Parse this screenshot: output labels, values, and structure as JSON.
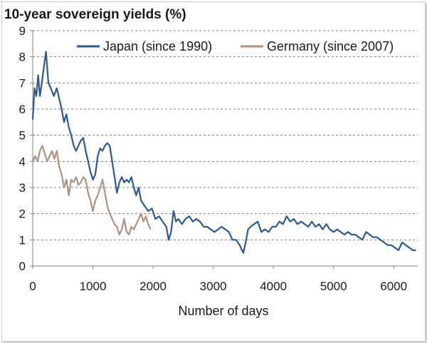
{
  "chart_data": {
    "type": "line",
    "title": "10-year sovereign yields (%)",
    "xlabel": "Number of days",
    "ylabel": "",
    "xlim": [
      0,
      6400
    ],
    "ylim": [
      0,
      9
    ],
    "xticks": [
      0,
      1000,
      2000,
      3000,
      4000,
      5000,
      6000
    ],
    "yticks": [
      0,
      1,
      2,
      3,
      4,
      5,
      6,
      7,
      8,
      9
    ],
    "grid": "horizontal dashed",
    "legend": "top-right",
    "series": [
      {
        "name": "Japan (since 1990)",
        "color": "#2e5a8f",
        "x": [
          0,
          30,
          60,
          90,
          120,
          150,
          190,
          220,
          260,
          300,
          350,
          400,
          440,
          480,
          520,
          560,
          600,
          640,
          680,
          720,
          760,
          800,
          840,
          880,
          920,
          960,
          1000,
          1040,
          1080,
          1120,
          1160,
          1200,
          1240,
          1280,
          1320,
          1360,
          1400,
          1440,
          1480,
          1520,
          1560,
          1600,
          1640,
          1680,
          1720,
          1760,
          1800,
          1860,
          1920,
          1980,
          2040,
          2100,
          2160,
          2220,
          2260,
          2300,
          2340,
          2380,
          2420,
          2480,
          2540,
          2600,
          2660,
          2720,
          2780,
          2840,
          2900,
          2960,
          3020,
          3080,
          3140,
          3200,
          3260,
          3320,
          3380,
          3440,
          3500,
          3540,
          3580,
          3620,
          3680,
          3740,
          3800,
          3860,
          3920,
          3980,
          4040,
          4100,
          4160,
          4220,
          4280,
          4340,
          4400,
          4460,
          4520,
          4580,
          4640,
          4700,
          4760,
          4820,
          4880,
          4940,
          5000,
          5060,
          5120,
          5180,
          5240,
          5300,
          5360,
          5420,
          5480,
          5540,
          5600,
          5660,
          5720,
          5780,
          5840,
          5900,
          5960,
          6020,
          6080,
          6140,
          6200,
          6260,
          6320,
          6370
        ],
        "values": [
          5.6,
          6.8,
          6.5,
          7.3,
          6.5,
          7.0,
          7.7,
          8.2,
          7.0,
          6.8,
          6.5,
          6.8,
          6.4,
          6.0,
          5.5,
          5.8,
          5.3,
          5.0,
          4.6,
          4.4,
          4.6,
          4.8,
          4.9,
          4.4,
          4.0,
          3.6,
          3.3,
          3.5,
          4.2,
          4.5,
          4.4,
          4.6,
          4.7,
          4.6,
          4.0,
          3.4,
          2.8,
          3.2,
          3.4,
          3.2,
          3.3,
          3.2,
          3.4,
          3.0,
          2.7,
          3.0,
          2.5,
          2.3,
          2.1,
          2.2,
          1.8,
          1.9,
          1.7,
          1.5,
          1.0,
          1.3,
          2.1,
          1.7,
          1.8,
          1.6,
          1.8,
          1.9,
          1.7,
          1.8,
          1.7,
          1.5,
          1.5,
          1.4,
          1.3,
          1.4,
          1.5,
          1.4,
          1.3,
          1.0,
          1.0,
          0.8,
          0.5,
          0.9,
          1.4,
          1.5,
          1.6,
          1.7,
          1.3,
          1.4,
          1.3,
          1.5,
          1.5,
          1.7,
          1.6,
          1.9,
          1.7,
          1.8,
          1.6,
          1.7,
          1.6,
          1.5,
          1.7,
          1.5,
          1.6,
          1.4,
          1.6,
          1.4,
          1.3,
          1.4,
          1.3,
          1.2,
          1.3,
          1.2,
          1.2,
          1.1,
          1.0,
          1.3,
          1.2,
          1.1,
          1.1,
          1.0,
          0.9,
          0.8,
          0.8,
          0.7,
          0.6,
          0.9,
          0.8,
          0.7,
          0.6,
          0.6
        ]
      },
      {
        "name": "Germany (since 2007)",
        "color": "#b09080",
        "x": [
          0,
          40,
          80,
          120,
          160,
          200,
          240,
          280,
          320,
          360,
          400,
          440,
          480,
          520,
          560,
          600,
          640,
          680,
          720,
          760,
          800,
          840,
          880,
          920,
          960,
          1000,
          1040,
          1080,
          1120,
          1160,
          1200,
          1240,
          1280,
          1320,
          1360,
          1400,
          1440,
          1480,
          1520,
          1560,
          1600,
          1640,
          1680,
          1720,
          1760,
          1800,
          1840,
          1880,
          1920,
          1960
        ],
        "values": [
          4.0,
          4.2,
          4.0,
          4.4,
          4.6,
          4.3,
          4.0,
          4.2,
          4.4,
          4.1,
          4.4,
          3.8,
          3.5,
          3.0,
          3.3,
          2.7,
          3.3,
          3.2,
          3.4,
          3.1,
          3.2,
          3.4,
          3.3,
          2.8,
          2.5,
          2.1,
          2.5,
          2.7,
          3.0,
          3.3,
          2.8,
          2.3,
          2.0,
          1.8,
          1.6,
          1.5,
          1.2,
          1.4,
          1.8,
          1.3,
          1.2,
          1.5,
          1.4,
          1.6,
          1.8,
          2.0,
          1.7,
          1.9,
          1.6,
          1.4
        ]
      }
    ]
  }
}
